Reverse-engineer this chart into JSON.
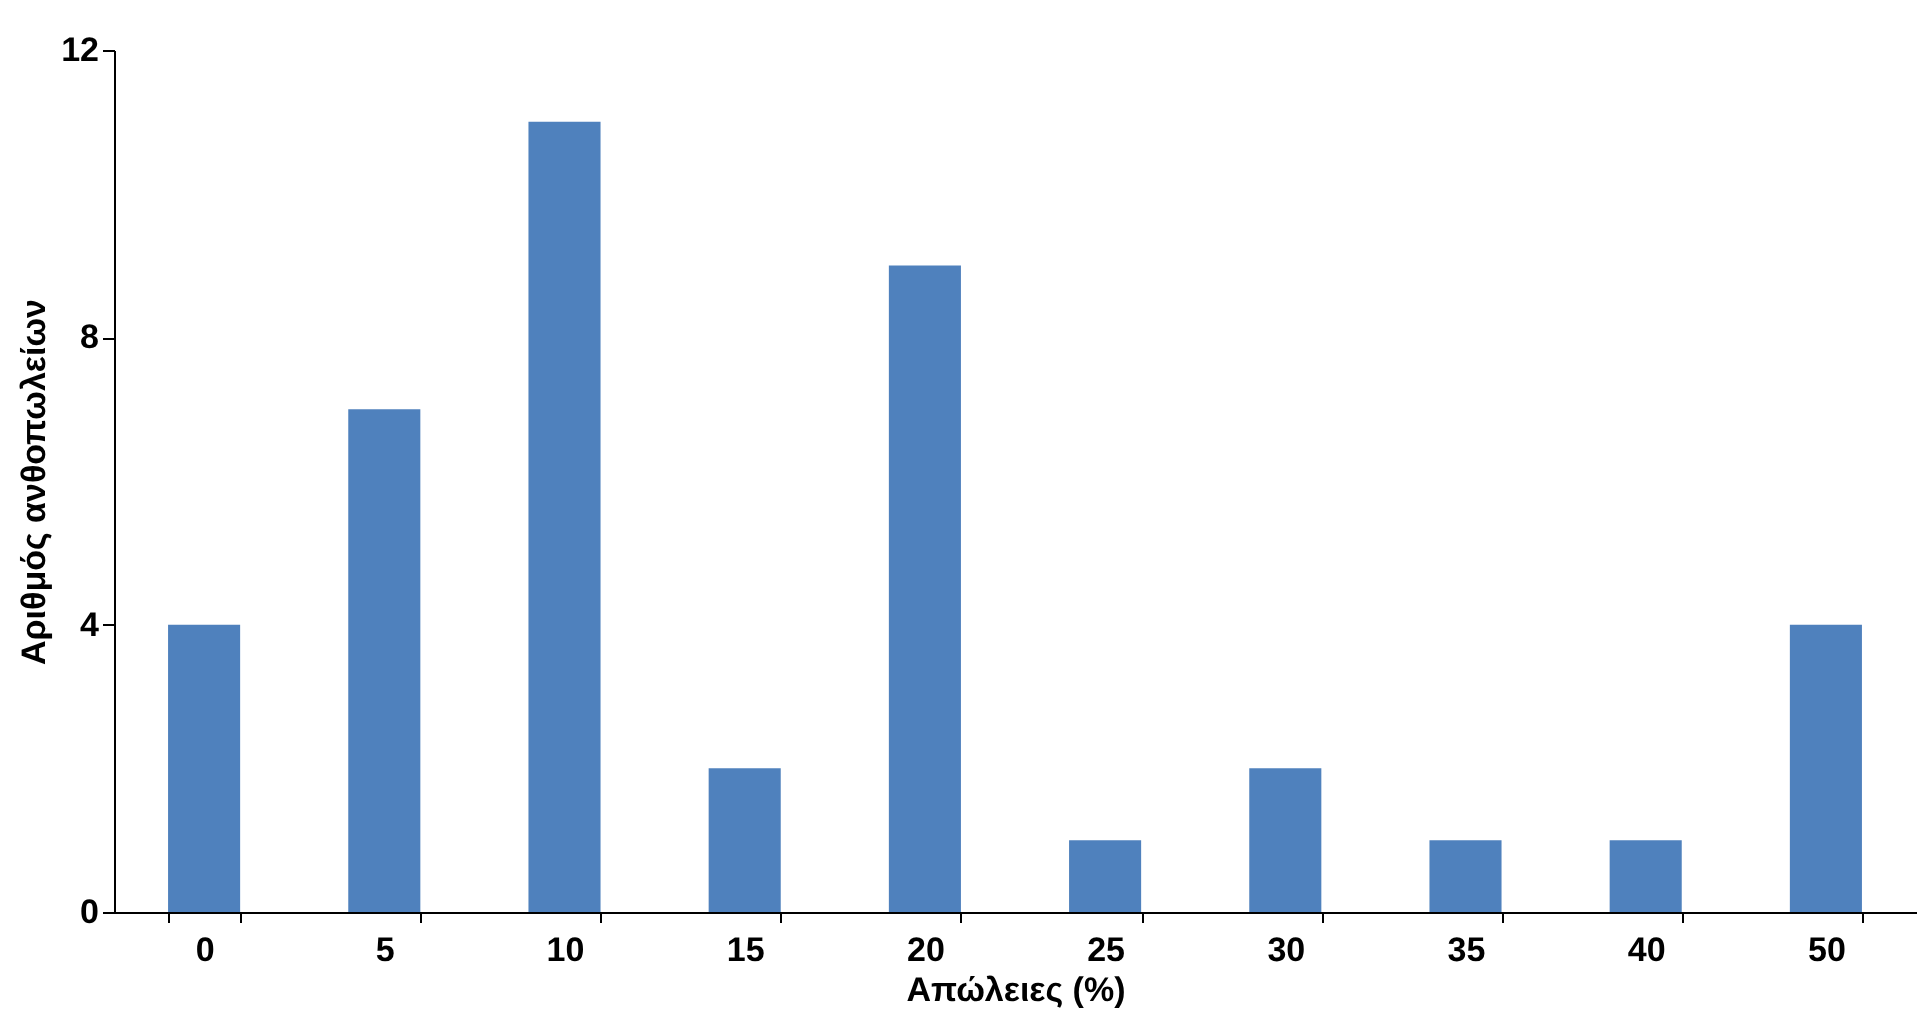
{
  "chart_data": {
    "type": "bar",
    "xlabel": "Απώλειες (%)",
    "ylabel": "Αριθμός ανθοπωλείων",
    "categories": [
      "0",
      "5",
      "10",
      "15",
      "20",
      "25",
      "30",
      "35",
      "40",
      "50"
    ],
    "values": [
      4,
      7,
      11,
      2,
      9,
      1,
      2,
      1,
      1,
      4
    ],
    "color": "#4f81bd",
    "ylim": [
      0,
      12
    ],
    "yticks": [
      0,
      4,
      8,
      12
    ],
    "grid": false
  }
}
